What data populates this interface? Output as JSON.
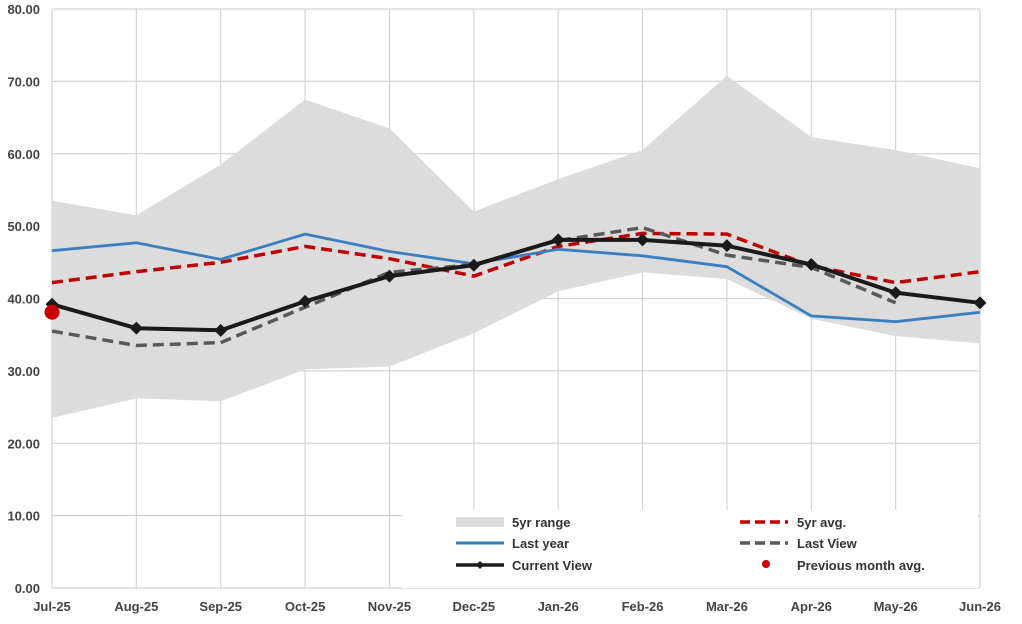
{
  "chart_data": {
    "type": "line",
    "title": "",
    "xlabel": "",
    "ylabel": "",
    "ylim": [
      0,
      80
    ],
    "yticks": [
      0,
      10,
      20,
      30,
      40,
      50,
      60,
      70,
      80
    ],
    "ytick_labels": [
      "0.00",
      "10.00",
      "20.00",
      "30.00",
      "40.00",
      "50.00",
      "60.00",
      "70.00",
      "80.00"
    ],
    "grid": true,
    "legend_position": "bottom-right",
    "categories": [
      "Jul-25",
      "Aug-25",
      "Sep-25",
      "Oct-25",
      "Nov-25",
      "Dec-25",
      "Jan-26",
      "Feb-26",
      "Mar-26",
      "Apr-26",
      "May-26",
      "Jun-26"
    ],
    "range": {
      "name": "5yr range",
      "color": "#dcdcdc",
      "upper": [
        53.5,
        51.5,
        58.5,
        67.5,
        63.5,
        52.0,
        56.5,
        60.5,
        70.8,
        62.3,
        60.5,
        58.0
      ],
      "lower": [
        23.5,
        26.2,
        25.8,
        30.2,
        30.6,
        35.2,
        41.0,
        43.6,
        42.7,
        37.2,
        34.8,
        33.8
      ]
    },
    "series": [
      {
        "name": "5yr avg.",
        "color": "#c00000",
        "style": "dashed",
        "values": [
          42.2,
          43.7,
          45.0,
          47.2,
          45.5,
          43.1,
          47.2,
          49.0,
          48.9,
          44.5,
          42.2,
          43.7
        ]
      },
      {
        "name": "Last year",
        "color": "#3a7fc1",
        "style": "solid",
        "values": [
          46.6,
          47.7,
          45.4,
          48.9,
          46.5,
          44.8,
          46.8,
          45.9,
          44.4,
          37.6,
          36.8,
          38.1
        ]
      },
      {
        "name": "Last View",
        "color": "#595959",
        "style": "dashed",
        "values": [
          35.5,
          33.5,
          33.9,
          38.8,
          43.6,
          44.7,
          48.0,
          49.8,
          46.0,
          44.3,
          39.4,
          null
        ]
      },
      {
        "name": "Current View",
        "color": "#1a1a1a",
        "style": "solid-markers",
        "values": [
          39.2,
          35.9,
          35.6,
          39.6,
          43.1,
          44.6,
          48.1,
          48.1,
          47.3,
          44.7,
          40.8,
          39.4
        ]
      }
    ],
    "points": [
      {
        "name": "Previous month avg.",
        "color": "#cc0000",
        "category": "Jul-25",
        "value": 38.1
      }
    ],
    "legend": [
      {
        "label": "5yr range",
        "kind": "range"
      },
      {
        "label": "5yr avg.",
        "kind": "dashed-red"
      },
      {
        "label": "Last year",
        "kind": "line-blue"
      },
      {
        "label": "Last View",
        "kind": "dashed-gray"
      },
      {
        "label": "Current View",
        "kind": "line-black-marker"
      },
      {
        "label": "Previous month avg.",
        "kind": "dot-red"
      }
    ]
  }
}
